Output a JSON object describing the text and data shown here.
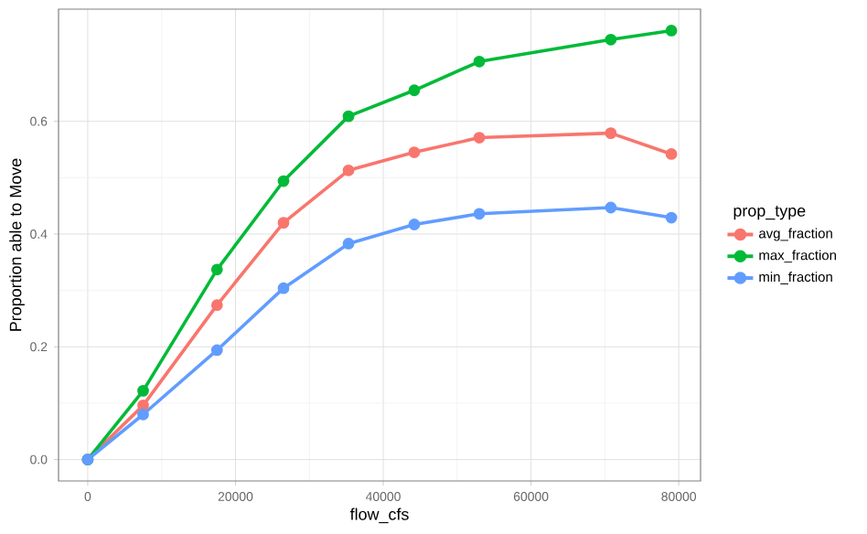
{
  "chart_data": {
    "type": "line",
    "xlabel": "flow_cfs",
    "ylabel": "Proportion able to Move",
    "legend_title": "prop_type",
    "x": [
      0,
      7500,
      17500,
      26500,
      35300,
      44200,
      53000,
      70800,
      79000
    ],
    "series": [
      {
        "name": "avg_fraction",
        "color": "#f8766d",
        "values": [
          0,
          0.096,
          0.274,
          0.42,
          0.513,
          0.545,
          0.571,
          0.579,
          0.542
        ]
      },
      {
        "name": "max_fraction",
        "color": "#00ba38",
        "values": [
          0,
          0.122,
          0.337,
          0.494,
          0.609,
          0.655,
          0.706,
          0.745,
          0.761
        ]
      },
      {
        "name": "min_fraction",
        "color": "#619cff",
        "values": [
          0,
          0.08,
          0.194,
          0.304,
          0.383,
          0.417,
          0.436,
          0.447,
          0.429
        ]
      }
    ],
    "xlim": [
      -3950,
      82950
    ],
    "ylim": [
      -0.038,
      0.799
    ],
    "xticks": [
      0,
      20000,
      40000,
      60000,
      80000
    ],
    "yticks": [
      {
        "value": 0,
        "label": "0.0"
      },
      {
        "value": 0.2,
        "label": "0.2"
      },
      {
        "value": 0.4,
        "label": "0.4"
      },
      {
        "value": 0.6,
        "label": "0.6"
      }
    ],
    "grid": true,
    "legend": "right",
    "marker": "circle",
    "line_style": "solid"
  }
}
